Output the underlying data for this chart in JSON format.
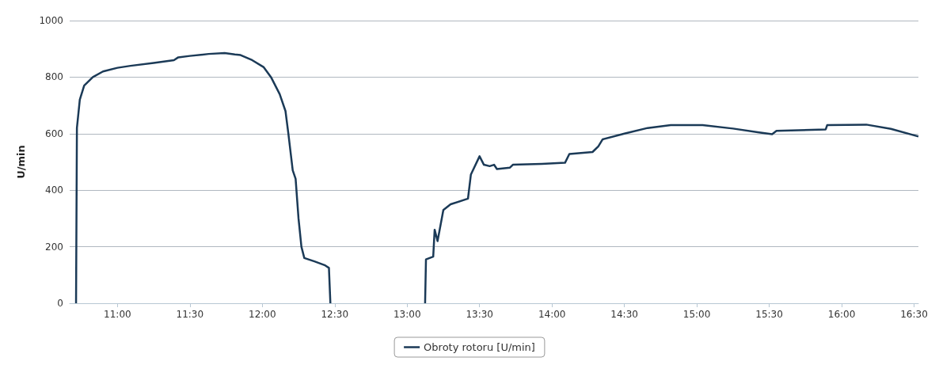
{
  "chart_data": {
    "type": "line",
    "ylabel": "U/min",
    "xlim": [
      10.67,
      16.53
    ],
    "ylim": [
      0,
      1000
    ],
    "yticks": [
      0,
      200,
      400,
      600,
      800,
      1000
    ],
    "xticks": [
      {
        "value": 11,
        "label": "11:00"
      },
      {
        "value": 11.5,
        "label": "11:30"
      },
      {
        "value": 12,
        "label": "12:00"
      },
      {
        "value": 12.5,
        "label": "12:30"
      },
      {
        "value": 13,
        "label": "13:00"
      },
      {
        "value": 13.5,
        "label": "13:30"
      },
      {
        "value": 14,
        "label": "14:00"
      },
      {
        "value": 14.5,
        "label": "14:30"
      },
      {
        "value": 15,
        "label": "15:00"
      },
      {
        "value": 15.5,
        "label": "15:30"
      },
      {
        "value": 16,
        "label": "16:00"
      },
      {
        "value": 16.5,
        "label": "16:30"
      }
    ],
    "grid": "y",
    "legend": "bottom",
    "marker": "none",
    "line_style": "solid",
    "series": [
      {
        "name": "Obroty rotoru [U/min]",
        "color": "#1b3a57",
        "x": [
          10.714,
          10.72,
          10.74,
          10.77,
          10.83,
          10.9,
          11.0,
          11.09,
          11.25,
          11.39,
          11.42,
          11.5,
          11.63,
          11.74,
          11.81,
          11.85,
          11.93,
          12.01,
          12.06,
          12.12,
          12.16,
          12.18,
          12.21,
          12.23,
          12.25,
          12.27,
          12.29,
          12.36,
          12.43,
          12.46,
          12.47,
          12.8,
          13.124,
          13.13,
          13.18,
          13.19,
          13.21,
          13.25,
          13.3,
          13.42,
          13.44,
          13.5,
          13.53,
          13.57,
          13.6,
          13.62,
          13.71,
          13.73,
          13.93,
          14.09,
          14.12,
          14.28,
          14.32,
          14.35,
          14.5,
          14.66,
          14.82,
          15.04,
          15.25,
          15.42,
          15.52,
          15.55,
          15.89,
          15.9,
          16.17,
          16.34,
          16.53
        ],
        "values": [
          0,
          620,
          720,
          770,
          800,
          820,
          833,
          840,
          850,
          860,
          870,
          875,
          882,
          885,
          880,
          878,
          860,
          835,
          800,
          740,
          680,
          600,
          470,
          440,
          300,
          200,
          160,
          148,
          135,
          125,
          0,
          null,
          0,
          155,
          165,
          260,
          220,
          330,
          350,
          370,
          455,
          520,
          490,
          485,
          490,
          475,
          480,
          490,
          493,
          497,
          528,
          535,
          555,
          580,
          600,
          620,
          630,
          630,
          618,
          605,
          598,
          610,
          615,
          630,
          632,
          617,
          590
        ]
      }
    ]
  }
}
